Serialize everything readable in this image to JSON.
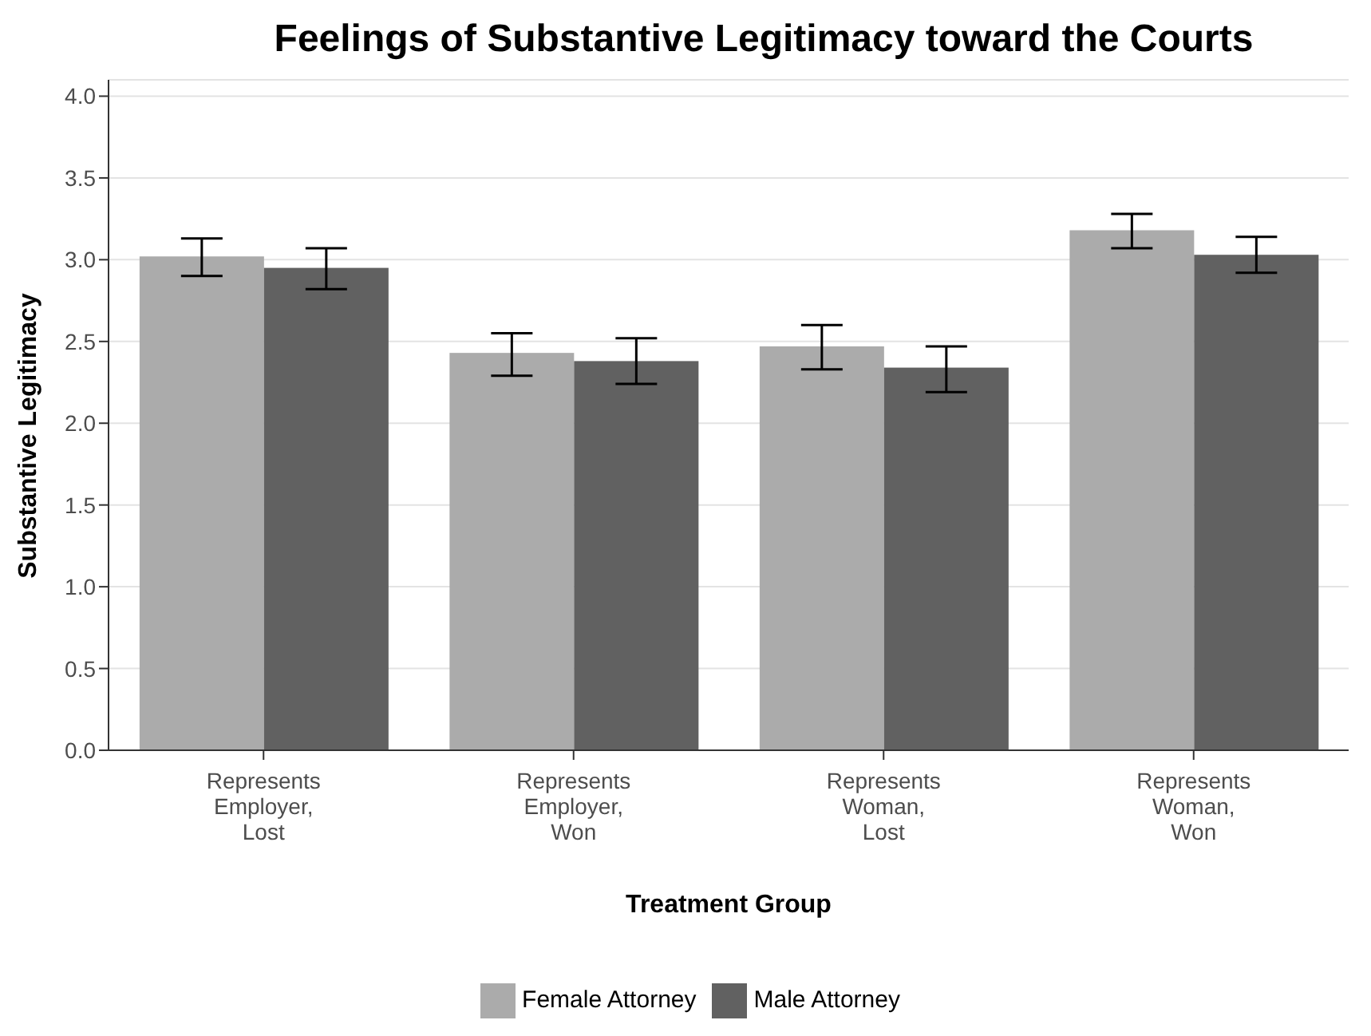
{
  "chart_data": {
    "type": "bar",
    "title": "Feelings of Substantive Legitimacy toward the Courts",
    "xlabel": "Treatment Group",
    "ylabel": "Substantive Legitimacy",
    "categories": [
      "Represents Employer, Lost",
      "Represents Employer, Won",
      "Represents Woman, Lost",
      "Represents Woman, Won"
    ],
    "series": [
      {
        "name": "Female Attorney",
        "color": "#ababab",
        "values": [
          3.02,
          2.43,
          2.47,
          3.18
        ],
        "errors": [
          [
            2.9,
            3.13
          ],
          [
            2.29,
            2.55
          ],
          [
            2.33,
            2.6
          ],
          [
            3.07,
            3.28
          ]
        ]
      },
      {
        "name": "Male Attorney",
        "color": "#616161",
        "values": [
          2.95,
          2.38,
          2.34,
          3.03
        ],
        "errors": [
          [
            2.82,
            3.07
          ],
          [
            2.24,
            2.52
          ],
          [
            2.19,
            2.47
          ],
          [
            2.92,
            3.14
          ]
        ]
      }
    ],
    "ylim": [
      0,
      4.1
    ],
    "yticks": [
      {
        "value": 0,
        "label": "0.0"
      },
      {
        "value": 0.5,
        "label": "0.5"
      },
      {
        "value": 1,
        "label": "1.0"
      },
      {
        "value": 1.5,
        "label": "1.5"
      },
      {
        "value": 2,
        "label": "2.0"
      },
      {
        "value": 2.5,
        "label": "2.5"
      },
      {
        "value": 3,
        "label": "3.0"
      },
      {
        "value": 3.5,
        "label": "3.5"
      },
      {
        "value": 4,
        "label": "4.0"
      }
    ],
    "grid": "y",
    "legend": "bottom"
  }
}
